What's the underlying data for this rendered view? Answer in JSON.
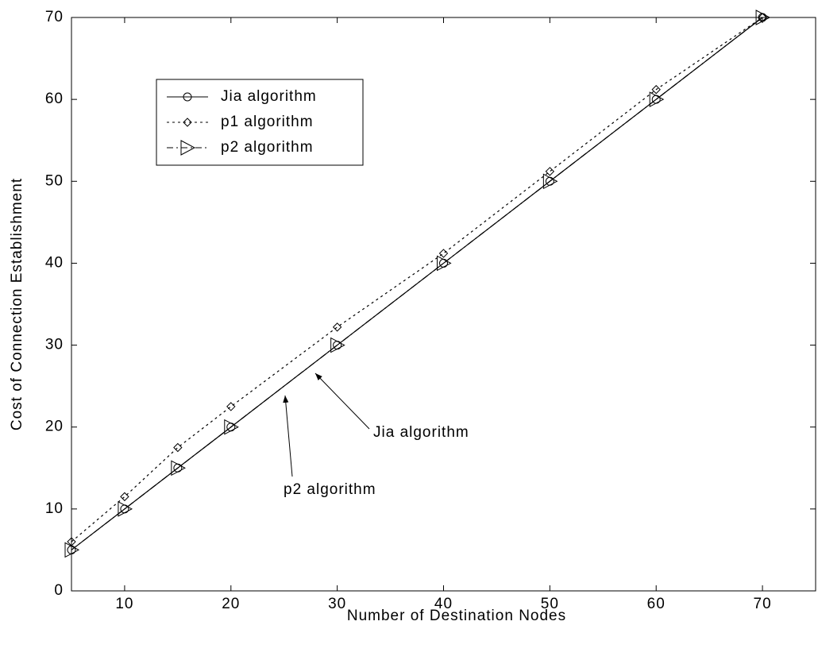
{
  "chart_data": {
    "type": "line",
    "x_label": "Number of Destination Nodes",
    "y_label": "Cost of Connection Establishment",
    "x": [
      5,
      10,
      15,
      20,
      30,
      40,
      50,
      60,
      70
    ],
    "series": [
      {
        "name": "Jia algorithm",
        "color": "#000000",
        "marker": "circle",
        "linestyle": "solid",
        "values": [
          5,
          10,
          15,
          20,
          30,
          40,
          50,
          60,
          70
        ]
      },
      {
        "name": "p1 algorithm",
        "color": "#000000",
        "marker": "diamond",
        "linestyle": "dotted",
        "values": [
          6,
          11.5,
          17.5,
          22.5,
          32.2,
          41.2,
          51.2,
          61.2,
          70
        ]
      },
      {
        "name": "p2 algorithm",
        "color": "#000000",
        "marker": "triangle-right",
        "linestyle": "dashdot",
        "values": [
          5,
          10,
          15,
          20,
          30,
          40,
          50,
          60,
          70
        ]
      }
    ],
    "xlim": [
      5,
      75
    ],
    "xticks": [
      10,
      20,
      30,
      40,
      50,
      60,
      70
    ],
    "ylim": [
      0,
      70
    ],
    "yticks": [
      0,
      10,
      20,
      30,
      40,
      50,
      60,
      70
    ],
    "annotations": [
      "Jia algorithm",
      "p2 algorithm"
    ]
  }
}
